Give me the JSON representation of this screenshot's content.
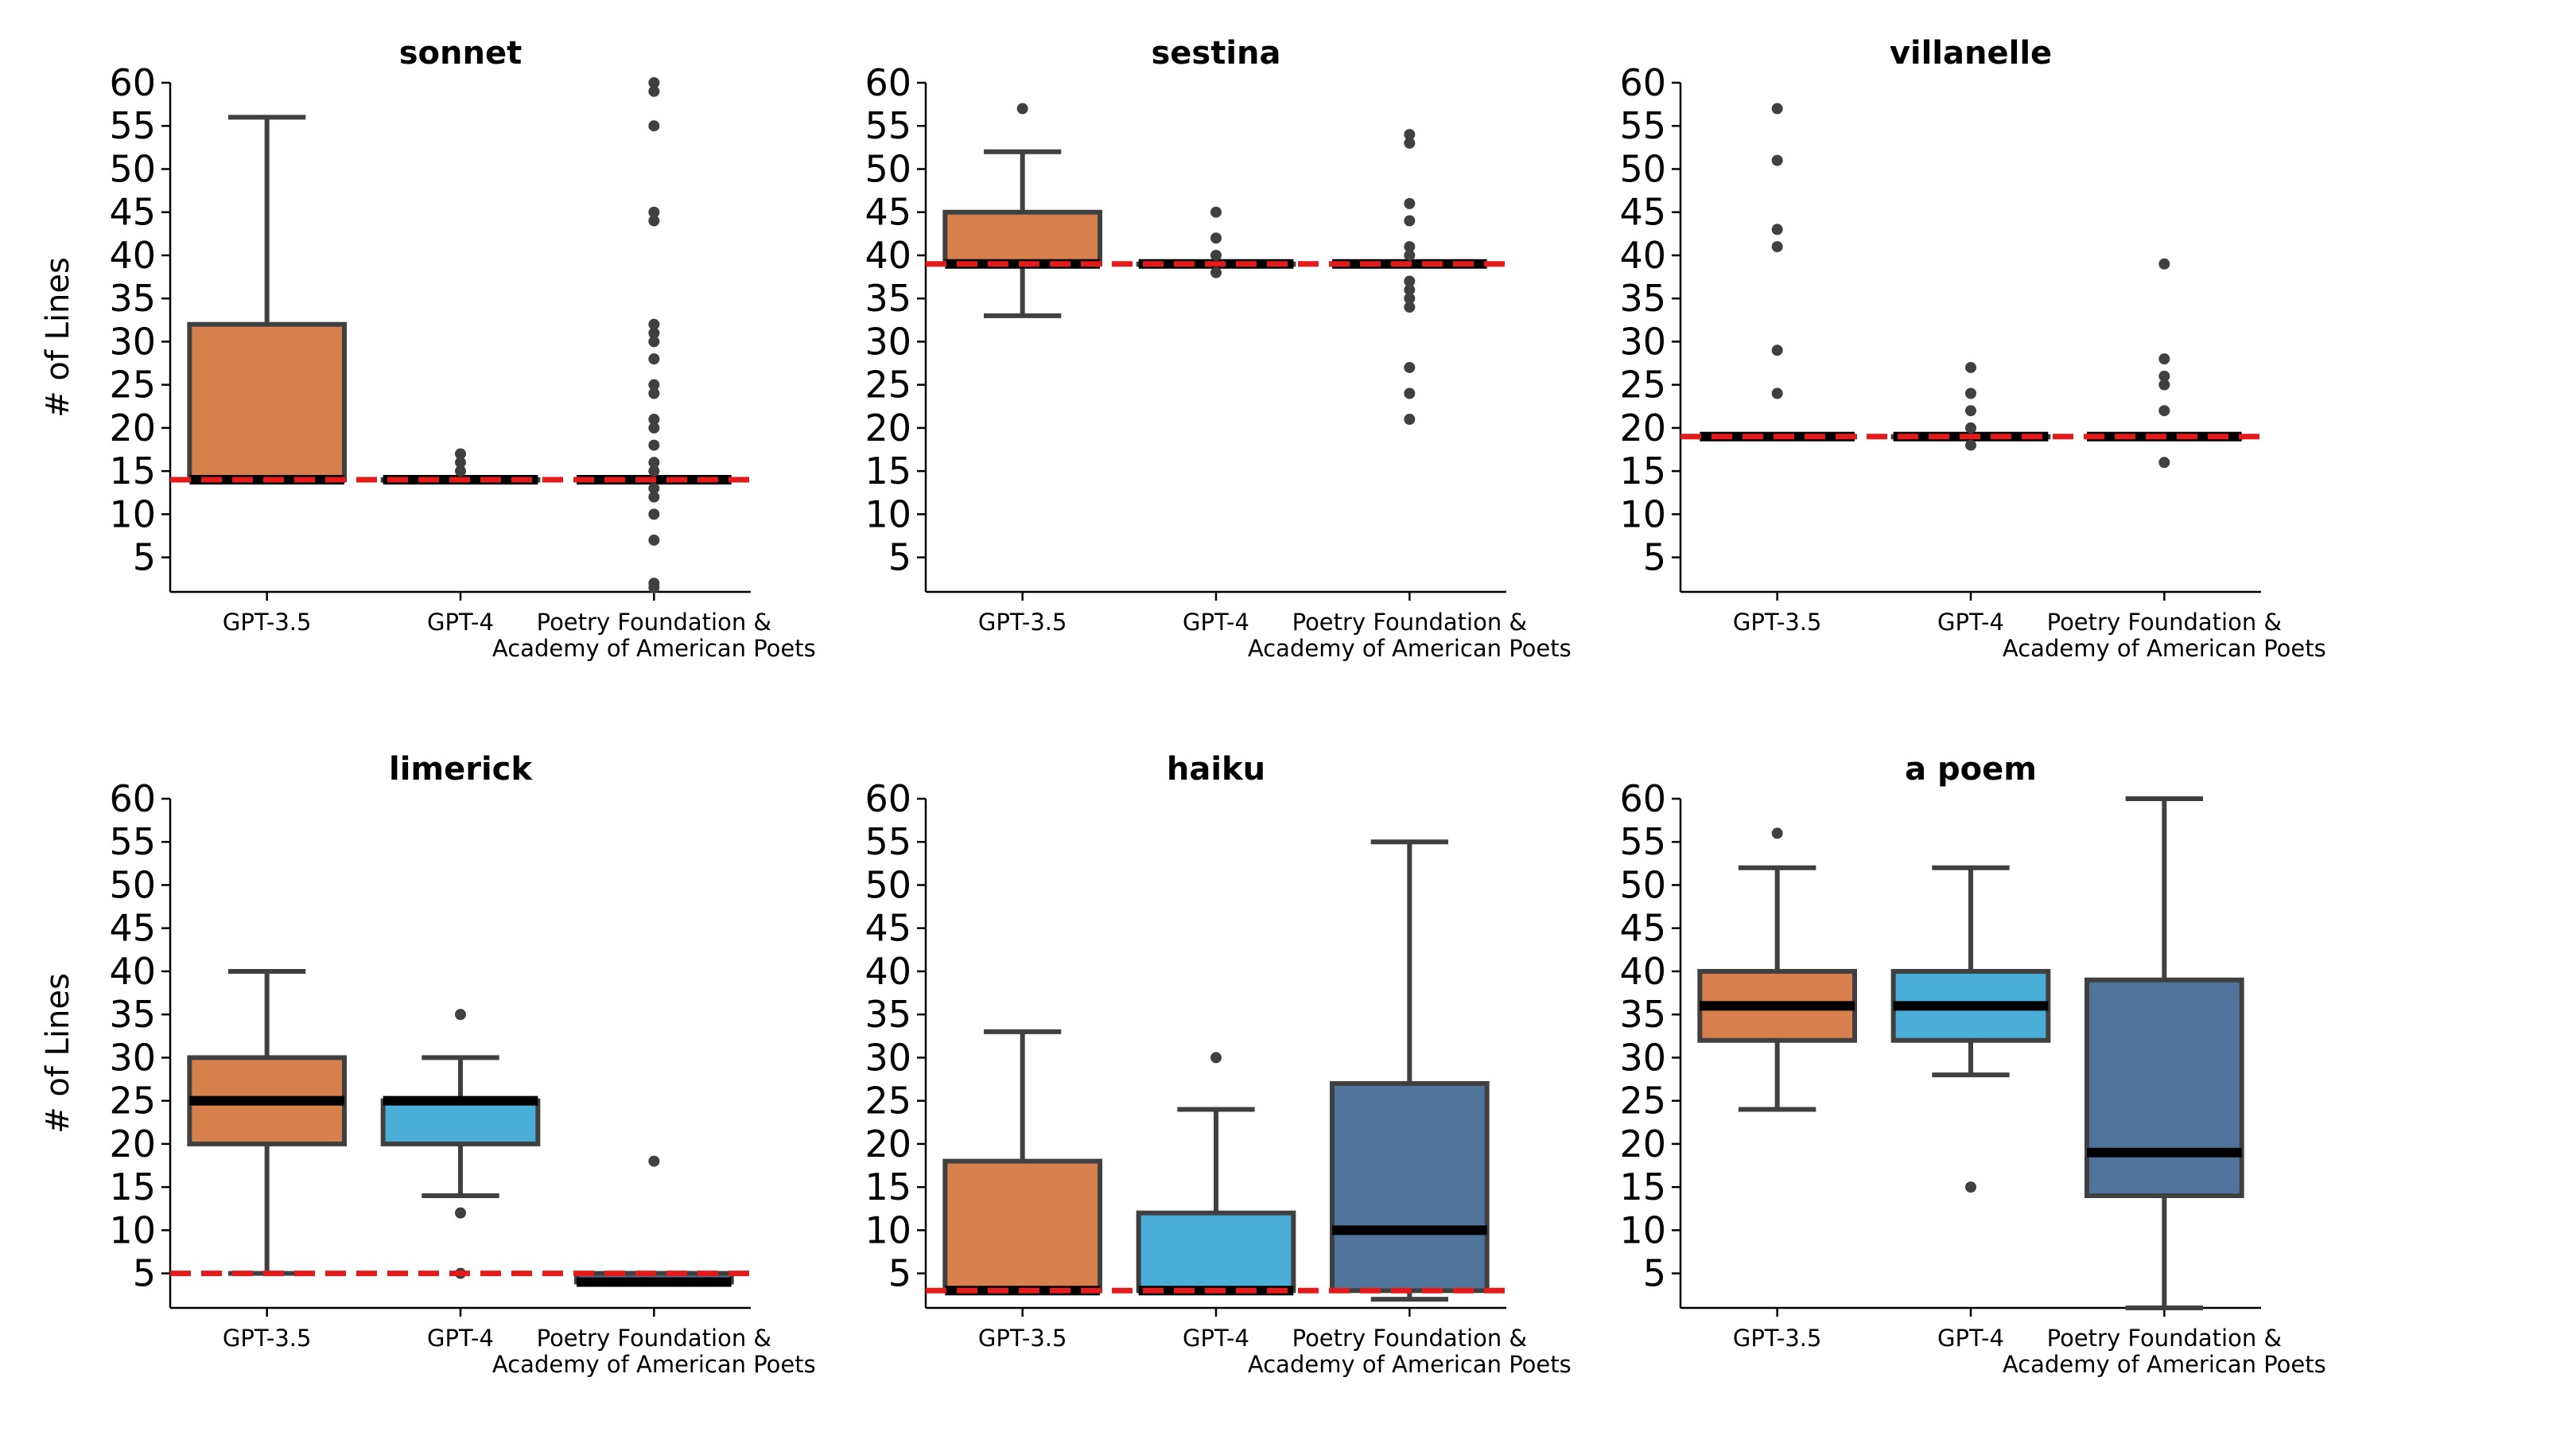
{
  "colors": {
    "gpt35": "#D77F4D",
    "gpt4": "#4BAED8",
    "poetry": "#50759C",
    "edge": "#404040",
    "median": "#000000",
    "reference": "#E31B1B"
  },
  "chart_data": [
    {
      "type": "box",
      "title": "sonnet",
      "ylabel": "# of Lines",
      "ylim": [
        1,
        60
      ],
      "yticks": [
        5,
        10,
        15,
        20,
        25,
        30,
        35,
        40,
        45,
        50,
        55,
        60
      ],
      "categories": [
        "GPT-3.5",
        "GPT-4",
        "Poetry Foundation &\nAcademy of American Poets"
      ],
      "reference_line": 14,
      "boxes": [
        {
          "name": "GPT-3.5",
          "q1": 14,
          "median": 14,
          "q3": 32,
          "whislo": 14,
          "whishi": 56,
          "fliers": []
        },
        {
          "name": "GPT-4",
          "q1": 14,
          "median": 14,
          "q3": 14,
          "whislo": 14,
          "whishi": 14,
          "fliers": [
            15,
            16,
            17
          ]
        },
        {
          "name": "Poetry Foundation & Academy of American Poets",
          "q1": 14,
          "median": 14,
          "q3": 14,
          "whislo": 14,
          "whishi": 14,
          "fliers": [
            1.5,
            2,
            7,
            10,
            12,
            13,
            15,
            16,
            18,
            20,
            21,
            24,
            25,
            28,
            30,
            31,
            32,
            44,
            45,
            55,
            59,
            60
          ]
        }
      ]
    },
    {
      "type": "box",
      "title": "sestina",
      "ylabel": "",
      "ylim": [
        1,
        60
      ],
      "yticks": [
        5,
        10,
        15,
        20,
        25,
        30,
        35,
        40,
        45,
        50,
        55,
        60
      ],
      "categories": [
        "GPT-3.5",
        "GPT-4",
        "Poetry Foundation &\nAcademy of American Poets"
      ],
      "reference_line": 39,
      "boxes": [
        {
          "name": "GPT-3.5",
          "q1": 39,
          "median": 39,
          "q3": 45,
          "whislo": 33,
          "whishi": 52,
          "fliers": [
            57
          ]
        },
        {
          "name": "GPT-4",
          "q1": 39,
          "median": 39,
          "q3": 39,
          "whislo": 39,
          "whishi": 39,
          "fliers": [
            38,
            40,
            42,
            45
          ]
        },
        {
          "name": "Poetry Foundation & Academy of American Poets",
          "q1": 39,
          "median": 39,
          "q3": 39,
          "whislo": 39,
          "whishi": 39,
          "fliers": [
            21,
            24,
            27,
            34,
            35,
            36,
            37,
            40,
            41,
            44,
            46,
            53,
            54
          ]
        }
      ]
    },
    {
      "type": "box",
      "title": "villanelle",
      "ylabel": "",
      "ylim": [
        1,
        60
      ],
      "yticks": [
        5,
        10,
        15,
        20,
        25,
        30,
        35,
        40,
        45,
        50,
        55,
        60
      ],
      "categories": [
        "GPT-3.5",
        "GPT-4",
        "Poetry Foundation &\nAcademy of American Poets"
      ],
      "reference_line": 19,
      "boxes": [
        {
          "name": "GPT-3.5",
          "q1": 19,
          "median": 19,
          "q3": 19,
          "whislo": 19,
          "whishi": 19,
          "fliers": [
            24,
            29,
            41,
            43,
            51,
            57
          ]
        },
        {
          "name": "GPT-4",
          "q1": 19,
          "median": 19,
          "q3": 19,
          "whislo": 19,
          "whishi": 19,
          "fliers": [
            18,
            20,
            22,
            24,
            27
          ]
        },
        {
          "name": "Poetry Foundation & Academy of American Poets",
          "q1": 19,
          "median": 19,
          "q3": 19,
          "whislo": 19,
          "whishi": 19,
          "fliers": [
            16,
            22,
            25,
            26,
            28,
            39
          ]
        }
      ]
    },
    {
      "type": "box",
      "title": "limerick",
      "ylabel": "# of Lines",
      "ylim": [
        1,
        60
      ],
      "yticks": [
        5,
        10,
        15,
        20,
        25,
        30,
        35,
        40,
        45,
        50,
        55,
        60
      ],
      "categories": [
        "GPT-3.5",
        "GPT-4",
        "Poetry Foundation &\nAcademy of American Poets"
      ],
      "reference_line": 5,
      "boxes": [
        {
          "name": "GPT-3.5",
          "q1": 20,
          "median": 25,
          "q3": 30,
          "whislo": 5,
          "whishi": 40,
          "fliers": []
        },
        {
          "name": "GPT-4",
          "q1": 20,
          "median": 25,
          "q3": 25,
          "whislo": 14,
          "whishi": 30,
          "fliers": [
            5,
            12,
            35
          ]
        },
        {
          "name": "Poetry Foundation & Academy of American Poets",
          "q1": 4,
          "median": 4,
          "q3": 5,
          "whislo": 4,
          "whishi": 5,
          "fliers": [
            18
          ]
        }
      ]
    },
    {
      "type": "box",
      "title": "haiku",
      "ylabel": "",
      "ylim": [
        1,
        60
      ],
      "yticks": [
        5,
        10,
        15,
        20,
        25,
        30,
        35,
        40,
        45,
        50,
        55,
        60
      ],
      "categories": [
        "GPT-3.5",
        "GPT-4",
        "Poetry Foundation &\nAcademy of American Poets"
      ],
      "reference_line": 3,
      "boxes": [
        {
          "name": "GPT-3.5",
          "q1": 3,
          "median": 3,
          "q3": 18,
          "whislo": 3,
          "whishi": 33,
          "fliers": []
        },
        {
          "name": "GPT-4",
          "q1": 3,
          "median": 3,
          "q3": 12,
          "whislo": 3,
          "whishi": 24,
          "fliers": [
            30
          ]
        },
        {
          "name": "Poetry Foundation & Academy of American Poets",
          "q1": 3,
          "median": 10,
          "q3": 27,
          "whislo": 2,
          "whishi": 55,
          "fliers": []
        }
      ]
    },
    {
      "type": "box",
      "title": "a poem",
      "ylabel": "",
      "ylim": [
        1,
        60
      ],
      "yticks": [
        5,
        10,
        15,
        20,
        25,
        30,
        35,
        40,
        45,
        50,
        55,
        60
      ],
      "categories": [
        "GPT-3.5",
        "GPT-4",
        "Poetry Foundation &\nAcademy of American Poets"
      ],
      "reference_line": null,
      "boxes": [
        {
          "name": "GPT-3.5",
          "q1": 32,
          "median": 36,
          "q3": 40,
          "whislo": 24,
          "whishi": 52,
          "fliers": [
            56
          ]
        },
        {
          "name": "GPT-4",
          "q1": 32,
          "median": 36,
          "q3": 40,
          "whislo": 28,
          "whishi": 52,
          "fliers": [
            15
          ]
        },
        {
          "name": "Poetry Foundation & Academy of American Poets",
          "q1": 14,
          "median": 19,
          "q3": 39,
          "whislo": 1,
          "whishi": 60,
          "fliers": []
        }
      ]
    }
  ]
}
